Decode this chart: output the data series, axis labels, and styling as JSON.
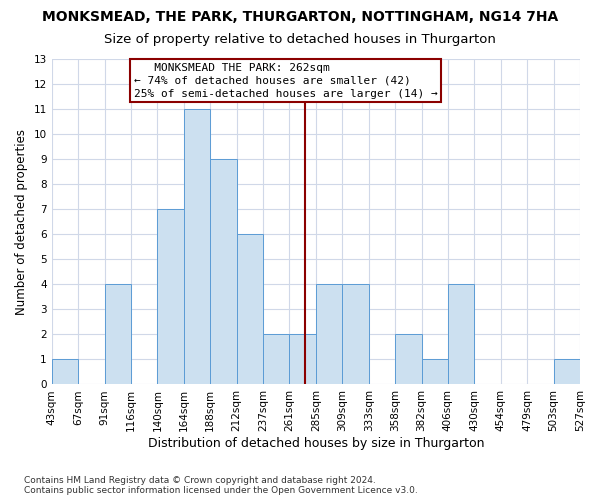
{
  "title": "MONKSMEAD, THE PARK, THURGARTON, NOTTINGHAM, NG14 7HA",
  "subtitle": "Size of property relative to detached houses in Thurgarton",
  "xlabel": "Distribution of detached houses by size in Thurgarton",
  "ylabel": "Number of detached properties",
  "bin_labels": [
    "43sqm",
    "67sqm",
    "91sqm",
    "116sqm",
    "140sqm",
    "164sqm",
    "188sqm",
    "212sqm",
    "237sqm",
    "261sqm",
    "285sqm",
    "309sqm",
    "333sqm",
    "358sqm",
    "382sqm",
    "406sqm",
    "430sqm",
    "454sqm",
    "479sqm",
    "503sqm",
    "527sqm"
  ],
  "bar_heights": [
    1,
    0,
    4,
    0,
    7,
    11,
    9,
    6,
    2,
    2,
    4,
    4,
    0,
    2,
    1,
    4,
    0,
    0,
    0,
    1
  ],
  "bar_color": "#cce0f0",
  "bar_edge_color": "#5b9bd5",
  "vline_x": 9.6,
  "vline_color": "#8b0000",
  "annotation_line1": "   MONKSMEAD THE PARK: 262sqm",
  "annotation_line2": "← 74% of detached houses are smaller (42)",
  "annotation_line3": "25% of semi-detached houses are larger (14) →",
  "annotation_box_color": "#8b0000",
  "ylim": [
    0,
    13
  ],
  "yticks": [
    0,
    1,
    2,
    3,
    4,
    5,
    6,
    7,
    8,
    9,
    10,
    11,
    12,
    13
  ],
  "footer": "Contains HM Land Registry data © Crown copyright and database right 2024.\nContains public sector information licensed under the Open Government Licence v3.0.",
  "bg_color": "#ffffff",
  "grid_color": "#d0d8e8",
  "title_fontsize": 10,
  "subtitle_fontsize": 9.5,
  "xlabel_fontsize": 9,
  "ylabel_fontsize": 8.5,
  "tick_fontsize": 7.5,
  "annotation_fontsize": 8,
  "footer_fontsize": 6.5
}
